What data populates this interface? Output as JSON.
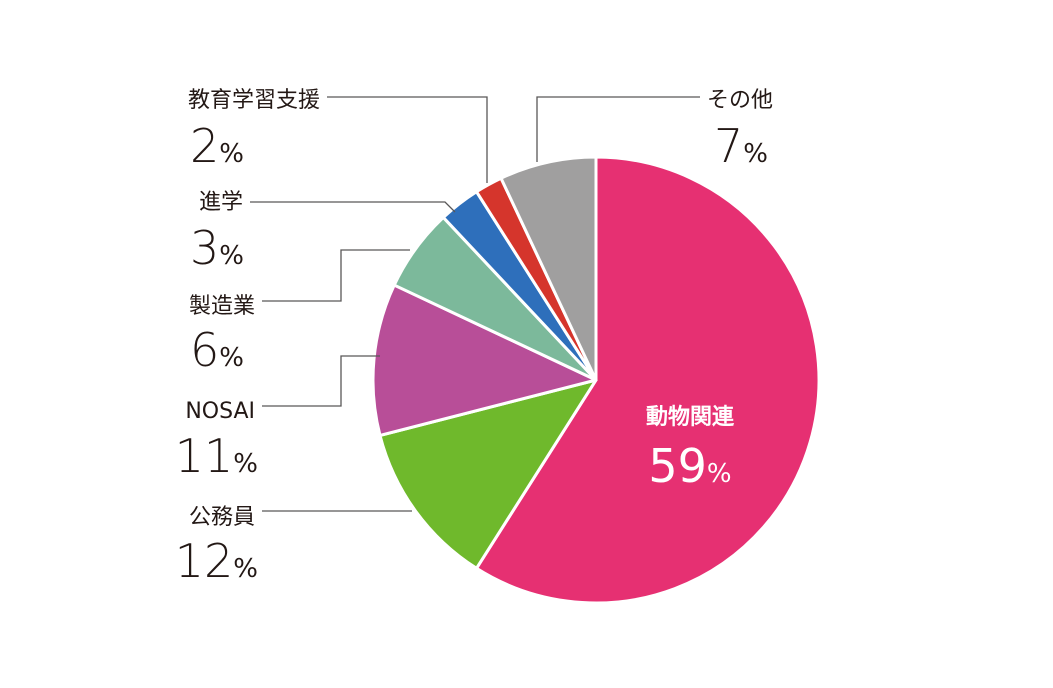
{
  "chart_data": {
    "type": "pie",
    "start_angle_deg": 0,
    "direction": "clockwise",
    "slices": [
      {
        "label": "動物関連",
        "value": 59,
        "pct_text": "59",
        "color": "#e63072"
      },
      {
        "label": "公務員",
        "value": 12,
        "pct_text": "12",
        "color": "#6fb92c"
      },
      {
        "label": "NOSAI",
        "value": 11,
        "pct_text": "11",
        "color": "#b84e98"
      },
      {
        "label": "製造業",
        "value": 6,
        "pct_text": "6",
        "color": "#7cb99b"
      },
      {
        "label": "進学",
        "value": 3,
        "pct_text": "3",
        "color": "#2e6fbb"
      },
      {
        "label": "教育学習支援",
        "value": 2,
        "pct_text": "2",
        "color": "#d5352c"
      },
      {
        "label": "その他",
        "value": 7,
        "pct_text": "7",
        "color": "#a09f9f"
      }
    ],
    "percent_sign": "%",
    "title": ""
  }
}
